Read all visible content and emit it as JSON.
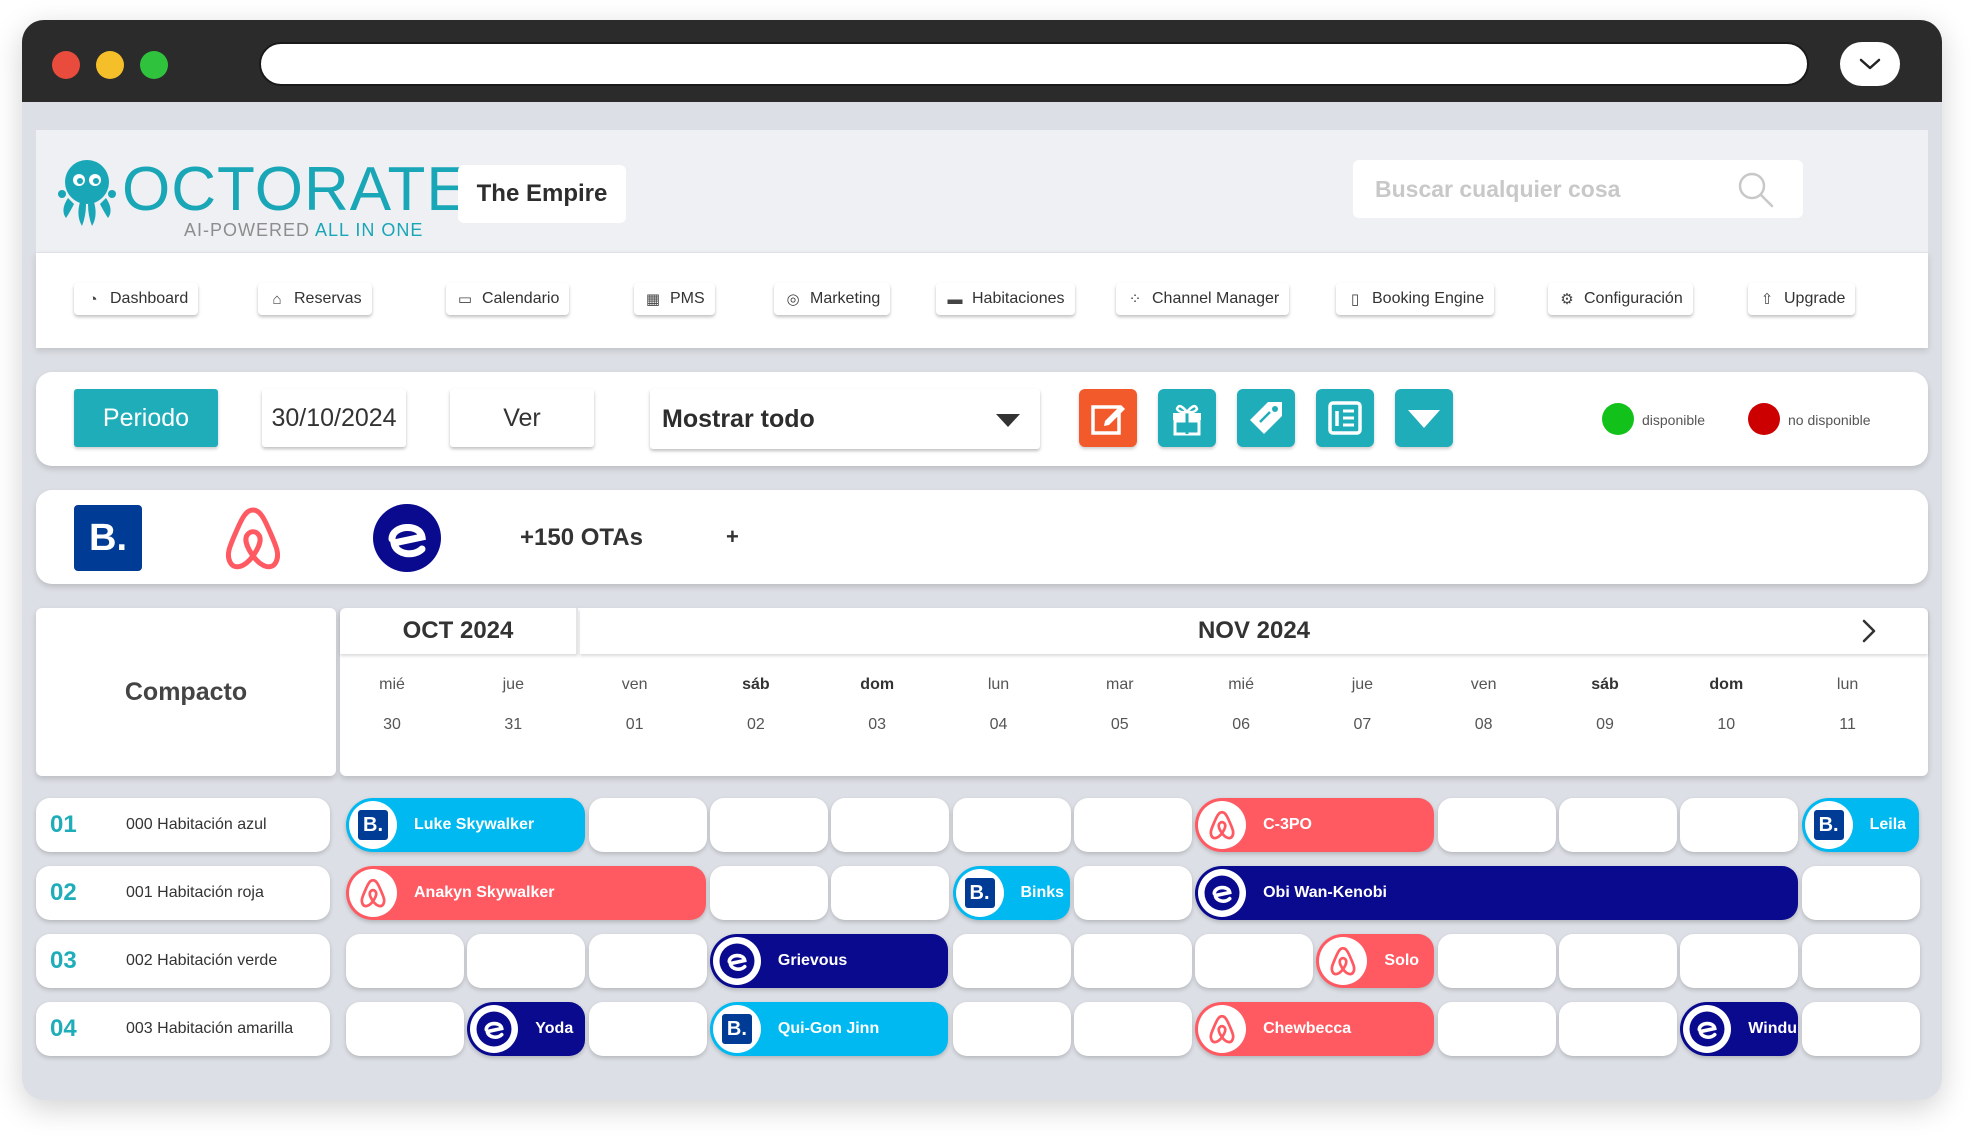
{
  "header": {
    "logo_word": "OCTORATE",
    "logo_tag_1": "AI-POWERED",
    "logo_tag_2": "ALL IN ONE",
    "property": "The Empire",
    "search_placeholder": "Buscar cualquier cosa"
  },
  "nav": [
    {
      "label": "Dashboard",
      "icon": "gauge-icon"
    },
    {
      "label": "Reservas",
      "icon": "home-icon"
    },
    {
      "label": "Calendario",
      "icon": "calendar-icon"
    },
    {
      "label": "PMS",
      "icon": "grid-calendar-icon"
    },
    {
      "label": "Marketing",
      "icon": "target-icon"
    },
    {
      "label": "Habitaciones",
      "icon": "bed-icon"
    },
    {
      "label": "Channel Manager",
      "icon": "spinner-icon"
    },
    {
      "label": "Booking Engine",
      "icon": "document-icon"
    },
    {
      "label": "Configuración",
      "icon": "gear-icon"
    },
    {
      "label": "Upgrade",
      "icon": "upgrade-icon"
    }
  ],
  "toolbar": {
    "periodo": "Periodo",
    "date": "30/10/2024",
    "ver": "Ver",
    "select_value": "Mostrar todo",
    "buttons": [
      {
        "name": "edit",
        "color": "#f25a2c",
        "icon": "edit-icon"
      },
      {
        "name": "gift",
        "color": "#1fadb9",
        "icon": "gift-icon"
      },
      {
        "name": "tag",
        "color": "#1fadb9",
        "icon": "tag-icon"
      },
      {
        "name": "list",
        "color": "#1fadb9",
        "icon": "list-icon"
      },
      {
        "name": "more",
        "color": "#1fadb9",
        "icon": "dropdown-icon"
      }
    ],
    "legend": [
      {
        "label": "disponible",
        "color": "#12c21a"
      },
      {
        "label": "no disponible",
        "color": "#cc0000"
      }
    ]
  },
  "ota": {
    "booking_letter": "B.",
    "count": "+150 OTAs",
    "plus": "+"
  },
  "calendar": {
    "view": "Compacto",
    "months": [
      "OCT 2024",
      "NOV 2024"
    ],
    "days": [
      {
        "name": "mié",
        "date": "30",
        "weekend": false
      },
      {
        "name": "jue",
        "date": "31",
        "weekend": false
      },
      {
        "name": "ven",
        "date": "01",
        "weekend": false
      },
      {
        "name": "sáb",
        "date": "02",
        "weekend": true
      },
      {
        "name": "dom",
        "date": "03",
        "weekend": true
      },
      {
        "name": "lun",
        "date": "04",
        "weekend": false
      },
      {
        "name": "mar",
        "date": "05",
        "weekend": false
      },
      {
        "name": "mié",
        "date": "06",
        "weekend": false
      },
      {
        "name": "jue",
        "date": "07",
        "weekend": false
      },
      {
        "name": "ven",
        "date": "08",
        "weekend": false
      },
      {
        "name": "sáb",
        "date": "09",
        "weekend": true
      },
      {
        "name": "dom",
        "date": "10",
        "weekend": true
      },
      {
        "name": "lun",
        "date": "11",
        "weekend": false
      }
    ],
    "rooms": [
      {
        "num": "01",
        "name": "000 Habitación azul",
        "reservations": [
          {
            "guest": "Luke Skywalker",
            "channel": "booking",
            "start": 0,
            "nights": 2
          },
          {
            "guest": "C-3PO",
            "channel": "airbnb",
            "start": 7,
            "nights": 2
          },
          {
            "guest": "Leila",
            "channel": "booking",
            "start": 12,
            "nights": 1
          }
        ]
      },
      {
        "num": "02",
        "name": "001 Habitación roja",
        "reservations": [
          {
            "guest": "Anakyn Skywalker",
            "channel": "airbnb",
            "start": 0,
            "nights": 3
          },
          {
            "guest": "Binks",
            "channel": "booking",
            "start": 5,
            "nights": 1
          },
          {
            "guest": "Obi Wan-Kenobi",
            "channel": "expedia",
            "start": 7,
            "nights": 5
          }
        ]
      },
      {
        "num": "03",
        "name": "002 Habitación verde",
        "reservations": [
          {
            "guest": "Grievous",
            "channel": "expedia",
            "start": 3,
            "nights": 2
          },
          {
            "guest": "Solo",
            "channel": "airbnb",
            "start": 8,
            "nights": 1
          }
        ]
      },
      {
        "num": "04",
        "name": "003 Habitación amarilla",
        "reservations": [
          {
            "guest": "Yoda",
            "channel": "expedia",
            "start": 1,
            "nights": 1
          },
          {
            "guest": "Qui-Gon Jinn",
            "channel": "booking",
            "start": 3,
            "nights": 2
          },
          {
            "guest": "Chewbecca",
            "channel": "airbnb",
            "start": 7,
            "nights": 2
          },
          {
            "guest": "Windu",
            "channel": "expedia",
            "start": 11,
            "nights": 1
          }
        ]
      }
    ]
  },
  "colors": {
    "accent": "#1fadb9",
    "booking": "#00b9f1",
    "airbnb": "#ff5a62",
    "expedia": "#0a0a8f"
  }
}
